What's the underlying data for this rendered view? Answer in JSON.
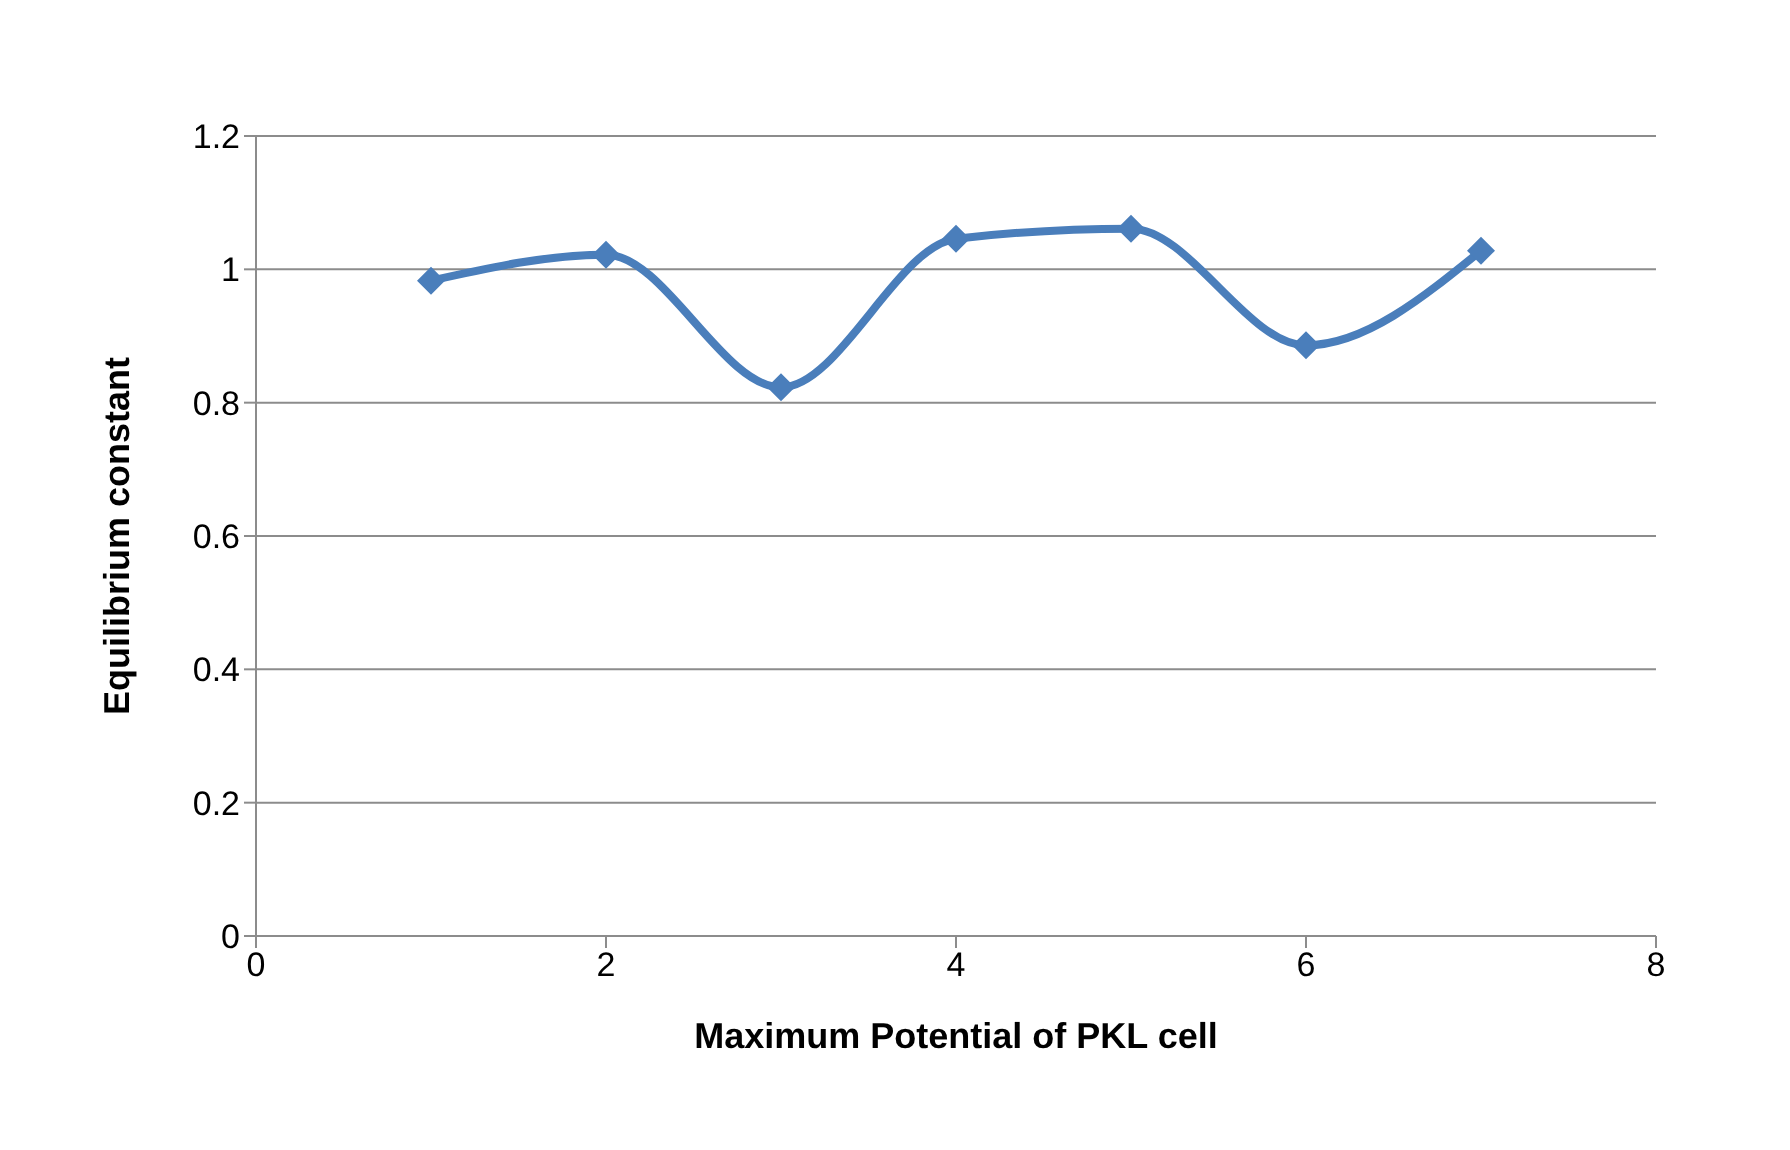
{
  "chart_data": {
    "type": "line",
    "xlabel": "Maximum Potential of PKL cell",
    "ylabel": "Equilibrium constant",
    "x": [
      1,
      2,
      3,
      4,
      5,
      6,
      7
    ],
    "series": [
      {
        "color": "#4a7ebb",
        "values": [
          0.983,
          1.022,
          0.823,
          1.046,
          1.061,
          0.886,
          1.028
        ]
      }
    ],
    "xlim": [
      0,
      8
    ],
    "xticks": [
      0,
      2,
      4,
      6,
      8
    ],
    "ylim": [
      0,
      1.2
    ],
    "yticks": [
      0,
      0.2,
      0.4,
      0.6,
      0.8,
      1,
      1.2
    ],
    "grid": "y",
    "legend": false,
    "marker": "diamond",
    "line_style": "solid"
  }
}
